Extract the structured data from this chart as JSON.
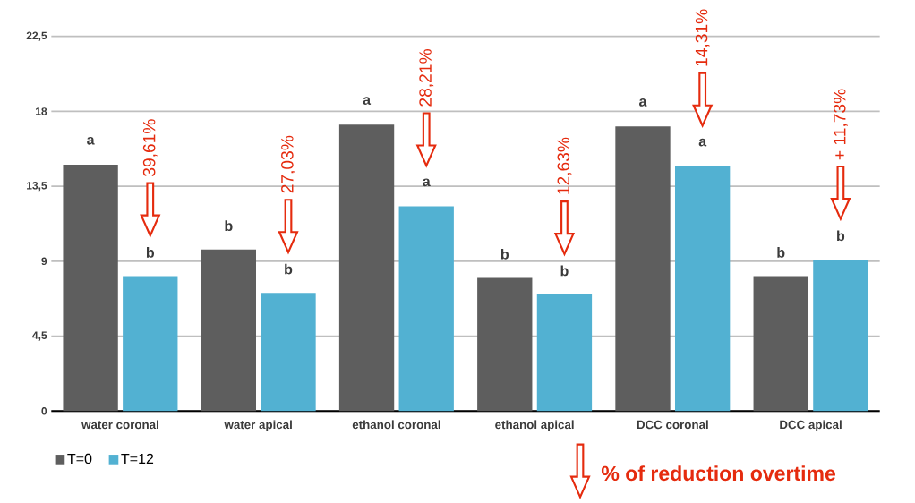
{
  "chart_data": {
    "type": "bar",
    "categories": [
      "water coronal",
      "water apical",
      "ethanol coronal",
      "ethanol apical",
      "DCC coronal",
      "DCC apical"
    ],
    "series": [
      {
        "name": "T=0",
        "color": "#5e5e5e",
        "values": [
          14.8,
          9.7,
          17.2,
          8.0,
          17.1,
          8.1
        ]
      },
      {
        "name": "T=12",
        "color": "#52b1d2",
        "values": [
          8.1,
          7.1,
          12.3,
          7.0,
          14.7,
          9.1
        ]
      }
    ],
    "ylim": [
      0,
      22.5
    ],
    "yticks": [
      0,
      {
        "value": 4.5,
        "label": "4,5"
      },
      9,
      {
        "value": 13.5,
        "label": "13,5"
      },
      18,
      {
        "value": 22.5,
        "label": "22,5"
      }
    ],
    "grid": "y",
    "legend": "bottom left",
    "annotations": [
      "a",
      "b",
      "39,61%",
      "b",
      "b",
      "27,03%",
      "a",
      "a",
      "28,21%",
      "b",
      "b",
      "12,63%",
      "a",
      "a",
      "14,31%",
      "b",
      "b",
      "+ 11,73%",
      "% of reduction overtime"
    ]
  }
}
